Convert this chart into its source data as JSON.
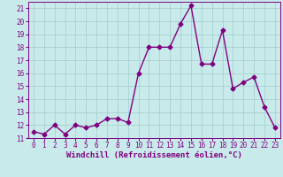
{
  "x": [
    0,
    1,
    2,
    3,
    4,
    5,
    6,
    7,
    8,
    9,
    10,
    11,
    12,
    13,
    14,
    15,
    16,
    17,
    18,
    19,
    20,
    21,
    22,
    23
  ],
  "y": [
    11.5,
    11.3,
    12.0,
    11.3,
    12.0,
    11.8,
    12.0,
    12.5,
    12.5,
    12.2,
    16.0,
    18.0,
    18.0,
    18.0,
    19.8,
    21.2,
    16.7,
    16.7,
    19.3,
    14.8,
    15.3,
    15.7,
    13.4,
    11.8
  ],
  "line_color": "#800080",
  "marker": "D",
  "marker_size": 2.5,
  "bg_color": "#c8eaea",
  "grid_color": "#a0cccc",
  "xlabel": "Windchill (Refroidissement éolien,°C)",
  "xlim": [
    -0.5,
    23.5
  ],
  "ylim": [
    11.0,
    21.5
  ],
  "yticks": [
    11,
    12,
    13,
    14,
    15,
    16,
    17,
    18,
    19,
    20,
    21
  ],
  "xticks": [
    0,
    1,
    2,
    3,
    4,
    5,
    6,
    7,
    8,
    9,
    10,
    11,
    12,
    13,
    14,
    15,
    16,
    17,
    18,
    19,
    20,
    21,
    22,
    23
  ],
  "tick_fontsize": 5.5,
  "xlabel_fontsize": 6.5,
  "line_width": 1.0
}
